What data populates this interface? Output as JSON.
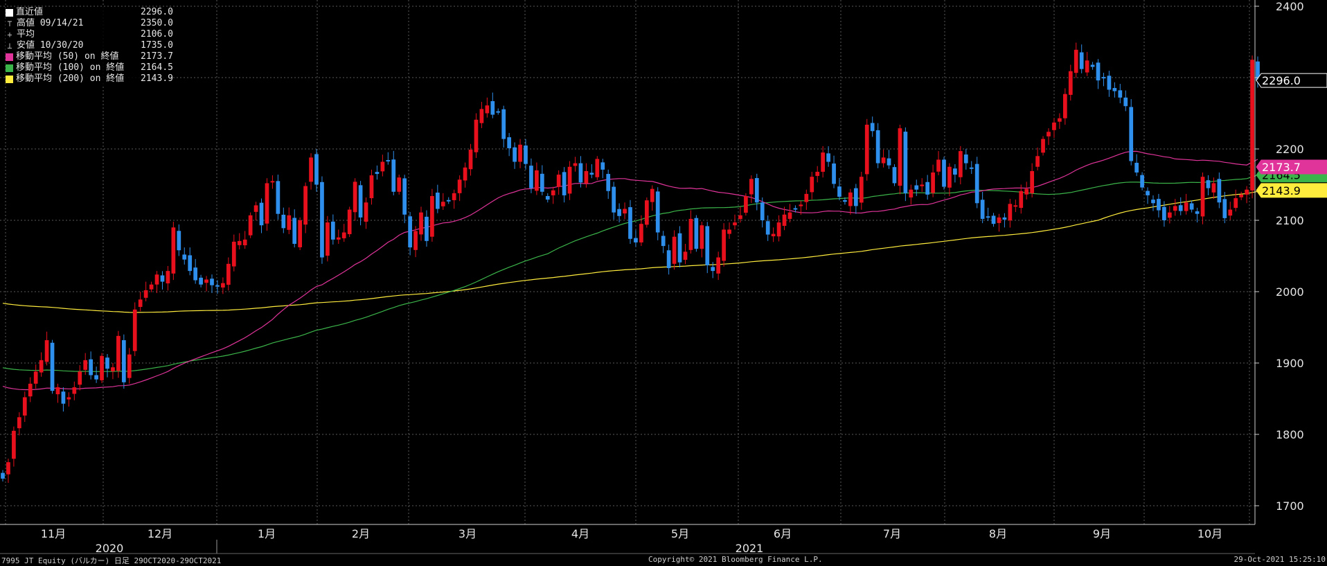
{
  "chart_data": {
    "type": "candlestick",
    "ylim": [
      1680,
      2410
    ],
    "yticks": [
      1700,
      1800,
      1900,
      2000,
      2100,
      2200,
      2300,
      2400
    ],
    "grid": true,
    "month_labels": [
      "11月",
      "12月",
      "1月",
      "2月",
      "3月",
      "4月",
      "5月",
      "6月",
      "7月",
      "8月",
      "9月",
      "10月"
    ],
    "year_labels": [
      "2020",
      "2021"
    ],
    "legend": [
      {
        "key": "last",
        "label": "直近値",
        "value": "2296.0",
        "color": "#ffffff",
        "marker": "square"
      },
      {
        "key": "high",
        "label": "高値 09/14/21",
        "value": "2350.0",
        "color": "#bbbbbb",
        "marker": "high"
      },
      {
        "key": "avg",
        "label": "平均",
        "value": "2106.0",
        "color": "#bbbbbb",
        "marker": "avg"
      },
      {
        "key": "low",
        "label": "安値 10/30/20",
        "value": "1735.0",
        "color": "#bbbbbb",
        "marker": "low"
      },
      {
        "key": "ma50",
        "label": "移動平均 (50) on 終値",
        "value": "2173.7",
        "color": "#e0349a",
        "marker": "square"
      },
      {
        "key": "ma100",
        "label": "移動平均 (100) on 終値",
        "value": "2164.5",
        "color": "#3bb54a",
        "marker": "square"
      },
      {
        "key": "ma200",
        "label": "移動平均 (200) on 終値",
        "value": "2143.9",
        "color": "#ffec3d",
        "marker": "square"
      }
    ],
    "last_price_tag": "2296.0",
    "colors": {
      "up": "#e8101c",
      "down": "#2f8fec",
      "ma50": "#e0349a",
      "ma100": "#3bb54a",
      "ma200": "#ffec3d",
      "grid": "#5a5a5a"
    },
    "closes": [
      1738,
      1761,
      1805,
      1824,
      1852,
      1871,
      1888,
      1904,
      1932,
      1861,
      1866,
      1843,
      1852,
      1866,
      1888,
      1904,
      1883,
      1877,
      1910,
      1892,
      1894,
      1938,
      1873,
      1912,
      1975,
      1989,
      2002,
      2010,
      2024,
      2014,
      2029,
      2090,
      2058,
      2045,
      2029,
      2016,
      2010,
      2017,
      2009,
      2007,
      2012,
      2039,
      2070,
      2071,
      2073,
      2107,
      2121,
      2093,
      2152,
      2155,
      2109,
      2089,
      2107,
      2067,
      2100,
      2148,
      2188,
      2150,
      2048,
      2097,
      2073,
      2076,
      2083,
      2115,
      2154,
      2104,
      2125,
      2163,
      2165,
      2182,
      2184,
      2140,
      2160,
      2108,
      2062,
      2085,
      2111,
      2071,
      2134,
      2116,
      2126,
      2127,
      2138,
      2157,
      2174,
      2199,
      2241,
      2256,
      2261,
      2248,
      2252,
      2214,
      2201,
      2182,
      2206,
      2179,
      2145,
      2170,
      2140,
      2129,
      2142,
      2164,
      2135,
      2175,
      2180,
      2153,
      2169,
      2164,
      2186,
      2171,
      2141,
      2111,
      2106,
      2116,
      2074,
      2069,
      2095,
      2128,
      2144,
      2083,
      2064,
      2033,
      2077,
      2041,
      2056,
      2102,
      2060,
      2093,
      2037,
      2029,
      2048,
      2087,
      2087,
      2097,
      2107,
      2134,
      2158,
      2125,
      2100,
      2080,
      2081,
      2097,
      2108,
      2111,
      2115,
      2122,
      2137,
      2161,
      2168,
      2195,
      2182,
      2151,
      2133,
      2126,
      2139,
      2120,
      2161,
      2234,
      2225,
      2180,
      2188,
      2177,
      2152,
      2229,
      2138,
      2143,
      2143,
      2150,
      2136,
      2167,
      2185,
      2147,
      2175,
      2164,
      2197,
      2180,
      2173,
      2124,
      2102,
      2104,
      2095,
      2104,
      2101,
      2123,
      2121,
      2141,
      2144,
      2169,
      2190,
      2214,
      2224,
      2237,
      2243,
      2277,
      2309,
      2339,
      2312,
      2324,
      2315,
      2296,
      2299,
      2283,
      2281,
      2272,
      2260,
      2183,
      2167,
      2146,
      2135,
      2124,
      2114,
      2100,
      2111,
      2120,
      2113,
      2125,
      2115,
      2109,
      2161,
      2145,
      2152,
      2125,
      2103,
      2115,
      2131,
      2136,
      2143,
      2325,
      2296
    ]
  },
  "footer": {
    "left": "7995 JT Equity (バルカー)  日足 29OCT2020-29OCT2021",
    "center": "Copyright© 2021 Bloomberg Finance L.P.",
    "right": "29-Oct-2021 15:25:10"
  }
}
